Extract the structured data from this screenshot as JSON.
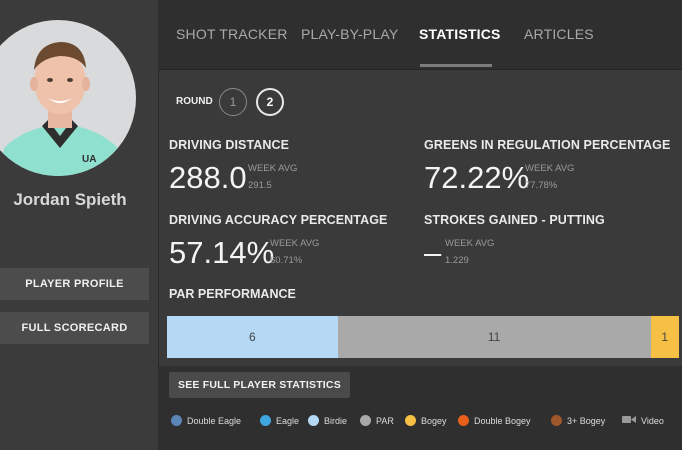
{
  "player": {
    "name": "Jordan Spieth"
  },
  "sidebar": {
    "profile_label": "PLAYER PROFILE",
    "scorecard_label": "FULL SCORECARD"
  },
  "tabs": [
    {
      "label": "SHOT TRACKER",
      "active": false
    },
    {
      "label": "PLAY-BY-PLAY",
      "active": false
    },
    {
      "label": "STATISTICS",
      "active": true
    },
    {
      "label": "ARTICLES",
      "active": false
    }
  ],
  "round": {
    "label": "ROUND",
    "options": [
      "1",
      "2"
    ],
    "selected": "2"
  },
  "stats": [
    {
      "title": "DRIVING DISTANCE",
      "value": "288.0",
      "week_label": "WEEK AVG",
      "week_avg": "291.5"
    },
    {
      "title": "GREENS IN REGULATION PERCENTAGE",
      "value": "72.22%",
      "week_label": "WEEK AVG",
      "week_avg": "77.78%"
    },
    {
      "title": "DRIVING ACCURACY PERCENTAGE",
      "value": "57.14%",
      "week_label": "WEEK AVG",
      "week_avg": "60.71%"
    },
    {
      "title": "STROKES GAINED - PUTTING",
      "value": "–",
      "week_label": "WEEK AVG",
      "week_avg": "1.229"
    }
  ],
  "par_performance": {
    "title": "PAR PERFORMANCE",
    "segments": [
      {
        "label": "Birdie",
        "count": "6",
        "color": "#b5d9f5"
      },
      {
        "label": "PAR",
        "count": "11",
        "color": "#a9a9a9"
      },
      {
        "label": "Bogey",
        "count": "1",
        "color": "#f5c043"
      }
    ]
  },
  "full_stats_label": "SEE FULL PLAYER STATISTICS",
  "legend": [
    {
      "label": "Double Eagle",
      "color": "#5c86b8",
      "icon": "dot"
    },
    {
      "label": "Eagle",
      "color": "#3ea6e0",
      "icon": "dot"
    },
    {
      "label": "Birdie",
      "color": "#b5d9f5",
      "icon": "dot"
    },
    {
      "label": "PAR",
      "color": "#a9a9a9",
      "icon": "dot"
    },
    {
      "label": "Bogey",
      "color": "#f5c043",
      "icon": "dot"
    },
    {
      "label": "Double Bogey",
      "color": "#e8601c",
      "icon": "dot"
    },
    {
      "label": "3+ Bogey",
      "color": "#a0582a",
      "icon": "dot"
    },
    {
      "label": "Video",
      "color": "#9a9a9a",
      "icon": "video-icon"
    }
  ]
}
